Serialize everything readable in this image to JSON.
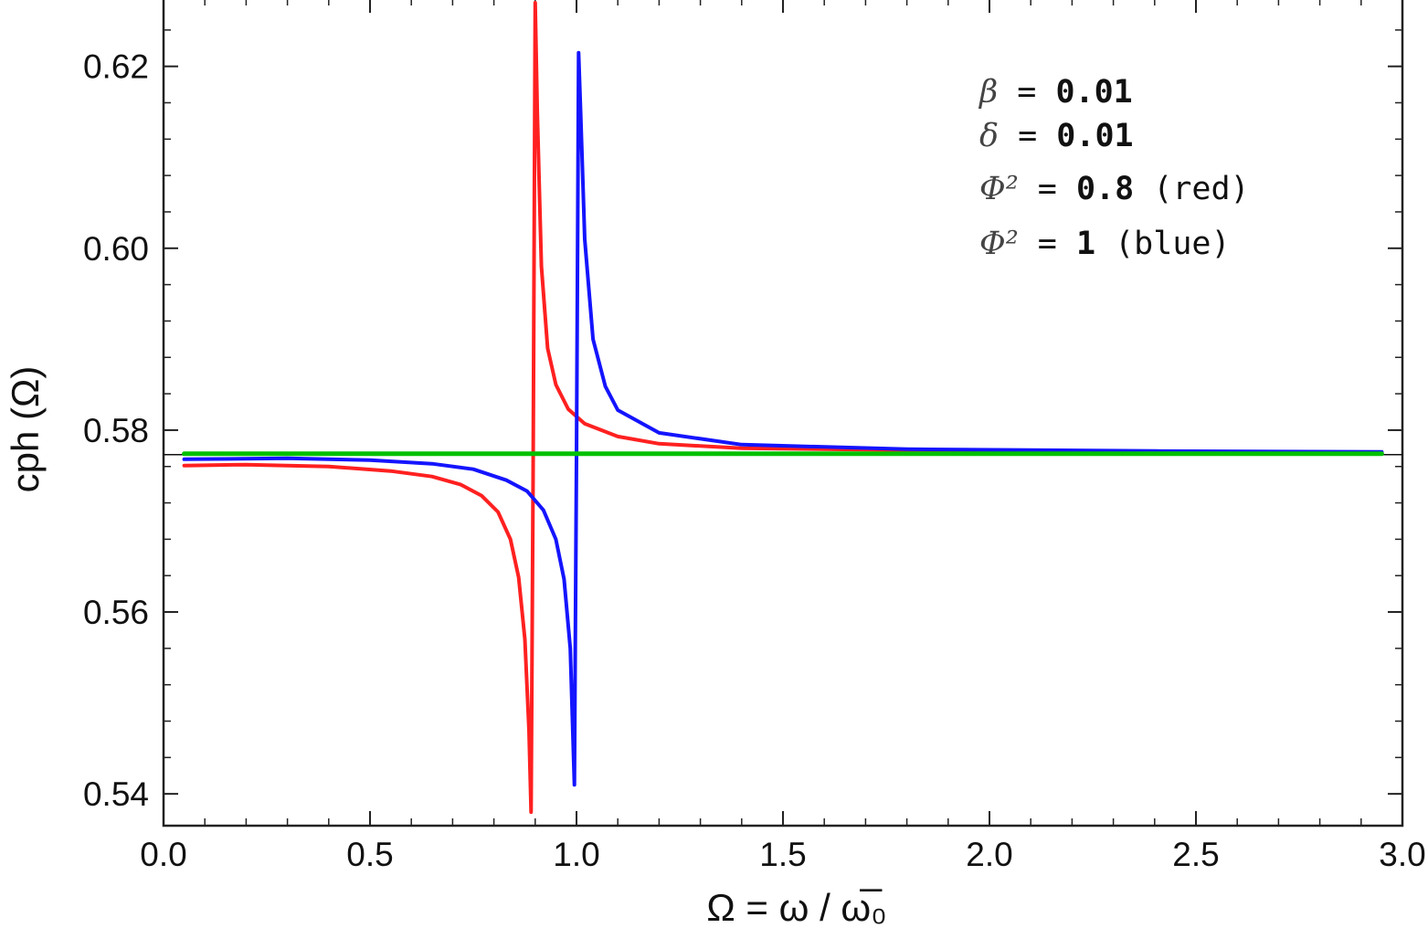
{
  "chart_data": {
    "type": "line",
    "title": "",
    "xlabel": "Ω = ω / ω̅₀",
    "ylabel": "cph (Ω)",
    "xlim": [
      0.0,
      3.0
    ],
    "ylim": [
      0.5365,
      0.6275
    ],
    "x_ticks": [
      "0.0",
      "0.5",
      "1.0",
      "1.5",
      "2.0",
      "2.5",
      "3.0"
    ],
    "y_ticks": [
      "0.54",
      "0.56",
      "0.58",
      "0.60",
      "0.62"
    ],
    "grid": false,
    "reference_line": {
      "y": 0.5773,
      "color": "#111111"
    },
    "colors": {
      "red": "#ff2020",
      "blue": "#1414ff",
      "green": "#00c000"
    },
    "series": [
      {
        "color": "#ff2020",
        "points": [
          [
            0.05,
            0.5761
          ],
          [
            0.2,
            0.5762
          ],
          [
            0.4,
            0.576
          ],
          [
            0.55,
            0.5755
          ],
          [
            0.65,
            0.5749
          ],
          [
            0.72,
            0.574
          ],
          [
            0.77,
            0.5728
          ],
          [
            0.81,
            0.571
          ],
          [
            0.84,
            0.568
          ],
          [
            0.86,
            0.5638
          ],
          [
            0.875,
            0.557
          ],
          [
            0.885,
            0.547
          ],
          [
            0.89,
            0.538
          ],
          [
            0.895,
            0.575
          ],
          [
            0.9,
            0.627
          ],
          [
            0.905,
            0.615
          ],
          [
            0.915,
            0.598
          ],
          [
            0.93,
            0.589
          ],
          [
            0.95,
            0.585
          ],
          [
            0.98,
            0.5823
          ],
          [
            1.02,
            0.5807
          ],
          [
            1.1,
            0.5793
          ],
          [
            1.2,
            0.5785
          ],
          [
            1.4,
            0.578
          ],
          [
            1.8,
            0.5778
          ],
          [
            2.4,
            0.5776
          ],
          [
            2.95,
            0.5775
          ]
        ]
      },
      {
        "color": "#1414ff",
        "points": [
          [
            0.05,
            0.5768
          ],
          [
            0.3,
            0.5769
          ],
          [
            0.5,
            0.5767
          ],
          [
            0.65,
            0.5763
          ],
          [
            0.75,
            0.5757
          ],
          [
            0.83,
            0.5745
          ],
          [
            0.88,
            0.5733
          ],
          [
            0.92,
            0.5712
          ],
          [
            0.95,
            0.568
          ],
          [
            0.97,
            0.5636
          ],
          [
            0.985,
            0.556
          ],
          [
            0.995,
            0.541
          ],
          [
            1.0,
            0.577
          ],
          [
            1.005,
            0.6215
          ],
          [
            1.01,
            0.615
          ],
          [
            1.02,
            0.601
          ],
          [
            1.04,
            0.59
          ],
          [
            1.07,
            0.5848
          ],
          [
            1.1,
            0.5822
          ],
          [
            1.2,
            0.5797
          ],
          [
            1.4,
            0.5784
          ],
          [
            1.8,
            0.5779
          ],
          [
            2.4,
            0.5777
          ],
          [
            2.95,
            0.5776
          ]
        ]
      },
      {
        "color": "#00c000",
        "points": [
          [
            0.05,
            0.5774
          ],
          [
            2.95,
            0.5774
          ]
        ]
      }
    ],
    "annotations": [
      {
        "sym": "β",
        "eq": " = ",
        "val": "0.01",
        "note": ""
      },
      {
        "sym": "δ",
        "eq": " = ",
        "val": "0.01",
        "note": ""
      },
      {
        "sym": "Φ²",
        "eq": " = ",
        "val": "0.8",
        "note": " (red)"
      },
      {
        "sym": "Φ²",
        "eq": " = ",
        "val": "1",
        "note": " (blue)"
      }
    ]
  }
}
